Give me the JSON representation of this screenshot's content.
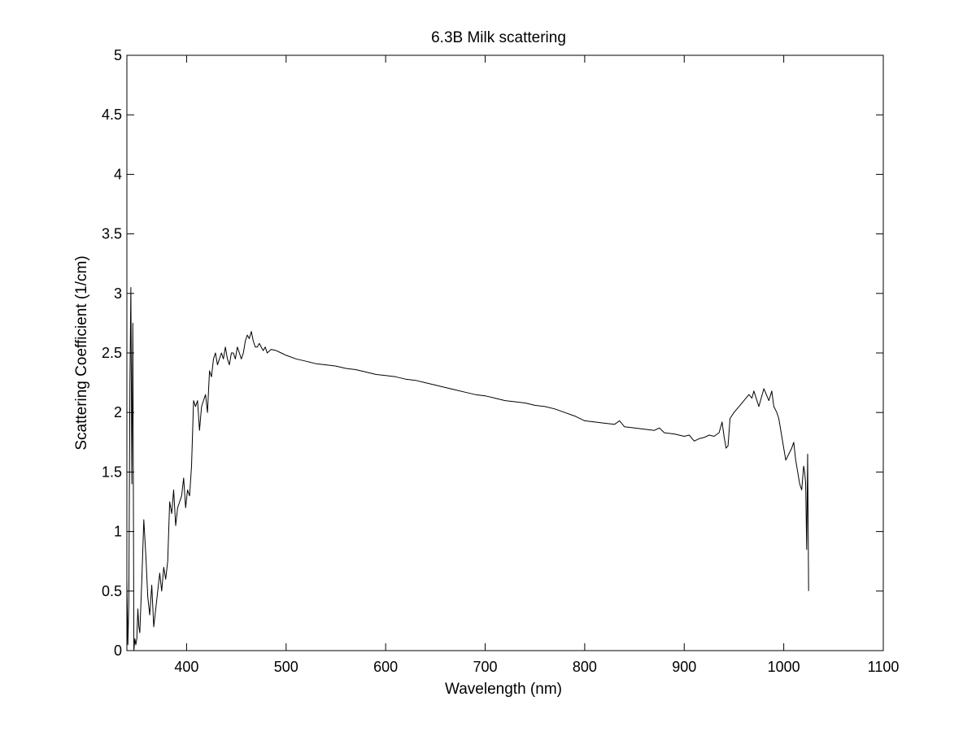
{
  "chart_data": {
    "type": "line",
    "title": "6.3B Milk scattering",
    "xlabel": "Wavelength (nm)",
    "ylabel": "Scattering Coefficient (1/cm)",
    "xlim": [
      340,
      1100
    ],
    "ylim": [
      0,
      5
    ],
    "xticks": [
      400,
      500,
      600,
      700,
      800,
      900,
      1000,
      1100
    ],
    "yticks": [
      0,
      0.5,
      1,
      1.5,
      2,
      2.5,
      3,
      3.5,
      4,
      4.5,
      5
    ],
    "xtick_labels": [
      "400",
      "500",
      "600",
      "700",
      "800",
      "900",
      "1000",
      "1100"
    ],
    "ytick_labels": [
      "0",
      "0.5",
      "1",
      "1.5",
      "2",
      "2.5",
      "3",
      "3.5",
      "4",
      "4.5",
      "5"
    ],
    "grid": false,
    "line_color": "#000000",
    "series": [
      {
        "x": [
          340,
          341,
          342,
          343,
          344,
          345,
          346,
          347,
          348,
          349,
          350,
          351,
          352,
          353,
          355,
          357,
          359,
          361,
          363,
          365,
          367,
          369,
          371,
          373,
          375,
          377,
          379,
          381,
          383,
          385,
          387,
          389,
          391,
          393,
          395,
          397,
          399,
          401,
          403,
          405,
          407,
          409,
          411,
          413,
          415,
          417,
          419,
          421,
          423,
          425,
          427,
          429,
          431,
          433,
          435,
          437,
          439,
          441,
          443,
          445,
          447,
          449,
          451,
          453,
          455,
          457,
          459,
          461,
          463,
          465,
          467,
          469,
          471,
          473,
          475,
          477,
          479,
          481,
          485,
          490,
          495,
          500,
          510,
          520,
          530,
          540,
          550,
          560,
          570,
          580,
          590,
          600,
          610,
          620,
          630,
          640,
          650,
          660,
          670,
          680,
          690,
          700,
          710,
          720,
          730,
          740,
          750,
          760,
          770,
          780,
          790,
          800,
          810,
          820,
          830,
          835,
          840,
          850,
          860,
          870,
          875,
          880,
          890,
          900,
          905,
          910,
          915,
          920,
          925,
          930,
          935,
          938,
          940,
          942,
          944,
          946,
          950,
          955,
          960,
          965,
          968,
          970,
          975,
          980,
          985,
          988,
          990,
          993,
          995,
          998,
          1000,
          1002,
          1005,
          1008,
          1010,
          1012,
          1014,
          1016,
          1018,
          1020,
          1021,
          1022,
          1023,
          1024,
          1025
        ],
        "y": [
          0.6,
          0.05,
          0.4,
          2.2,
          3.05,
          1.4,
          2.75,
          0.0,
          0.1,
          0.05,
          0.1,
          0.35,
          0.2,
          0.15,
          0.6,
          1.1,
          0.8,
          0.45,
          0.3,
          0.55,
          0.2,
          0.35,
          0.5,
          0.65,
          0.5,
          0.7,
          0.6,
          0.75,
          1.25,
          1.15,
          1.35,
          1.05,
          1.2,
          1.25,
          1.3,
          1.45,
          1.2,
          1.35,
          1.3,
          1.55,
          2.1,
          2.05,
          2.1,
          1.85,
          2.05,
          2.1,
          2.15,
          2.0,
          2.35,
          2.3,
          2.45,
          2.5,
          2.4,
          2.45,
          2.5,
          2.45,
          2.55,
          2.45,
          2.4,
          2.5,
          2.5,
          2.45,
          2.55,
          2.5,
          2.45,
          2.5,
          2.6,
          2.65,
          2.62,
          2.68,
          2.6,
          2.55,
          2.55,
          2.58,
          2.55,
          2.52,
          2.55,
          2.5,
          2.53,
          2.52,
          2.5,
          2.48,
          2.45,
          2.43,
          2.41,
          2.4,
          2.39,
          2.37,
          2.36,
          2.34,
          2.32,
          2.31,
          2.3,
          2.28,
          2.27,
          2.25,
          2.23,
          2.21,
          2.19,
          2.17,
          2.15,
          2.14,
          2.12,
          2.1,
          2.09,
          2.08,
          2.06,
          2.05,
          2.03,
          2.0,
          1.97,
          1.93,
          1.92,
          1.91,
          1.9,
          1.93,
          1.88,
          1.87,
          1.86,
          1.85,
          1.87,
          1.83,
          1.82,
          1.8,
          1.81,
          1.76,
          1.78,
          1.79,
          1.81,
          1.8,
          1.83,
          1.92,
          1.8,
          1.7,
          1.72,
          1.95,
          2.0,
          2.05,
          2.1,
          2.15,
          2.12,
          2.18,
          2.05,
          2.2,
          2.1,
          2.18,
          2.05,
          2.0,
          1.95,
          1.8,
          1.7,
          1.6,
          1.65,
          1.7,
          1.75,
          1.6,
          1.5,
          1.4,
          1.35,
          1.55,
          1.5,
          1.4,
          0.85,
          1.65,
          0.5
        ]
      }
    ]
  }
}
